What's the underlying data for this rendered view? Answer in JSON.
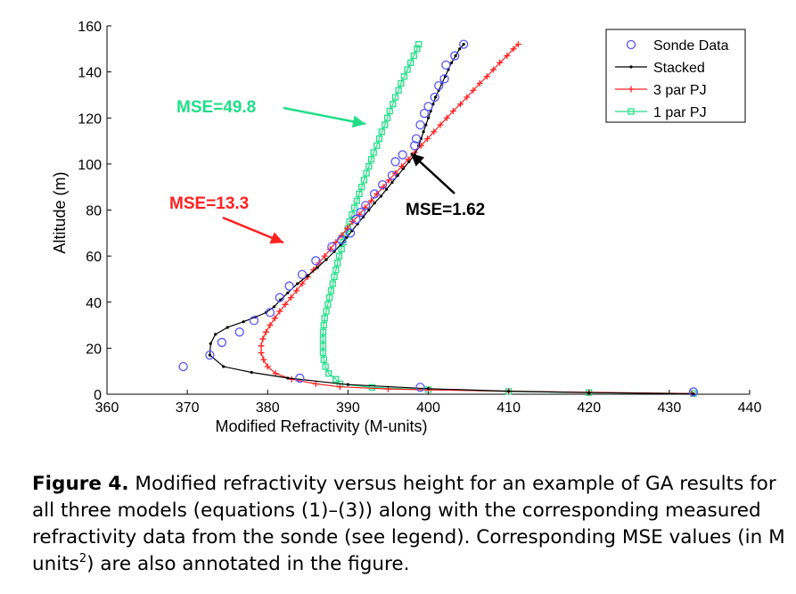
{
  "chart_data": {
    "type": "line",
    "xlabel": "Modified Refractivity (M-units)",
    "ylabel": "Altitude (m)",
    "xlim": [
      360,
      440
    ],
    "ylim": [
      0,
      160
    ],
    "xticks": [
      360,
      370,
      380,
      390,
      400,
      410,
      420,
      430,
      440
    ],
    "yticks": [
      0,
      20,
      40,
      60,
      80,
      100,
      120,
      140,
      160
    ],
    "legend_position": "top-right",
    "grid": false,
    "series": [
      {
        "name": "Sonde Data",
        "color": "#5555ff",
        "style": "markers-circle",
        "points": [
          [
            433.0,
            1
          ],
          [
            399.0,
            3
          ],
          [
            384.0,
            7
          ],
          [
            369.5,
            12
          ],
          [
            372.8,
            17
          ],
          [
            374.3,
            22.5
          ],
          [
            376.5,
            27
          ],
          [
            378.3,
            32
          ],
          [
            380.3,
            35.5
          ],
          [
            381.5,
            42
          ],
          [
            382.7,
            47
          ],
          [
            384.3,
            52
          ],
          [
            386.0,
            58
          ],
          [
            388.0,
            64
          ],
          [
            389.2,
            67
          ],
          [
            390.3,
            70
          ],
          [
            391.0,
            76
          ],
          [
            391.6,
            79
          ],
          [
            392.2,
            82
          ],
          [
            393.3,
            87
          ],
          [
            394.3,
            91
          ],
          [
            395.5,
            95
          ],
          [
            395.9,
            101
          ],
          [
            396.8,
            104
          ],
          [
            398.3,
            108
          ],
          [
            398.5,
            111
          ],
          [
            399.0,
            117
          ],
          [
            399.5,
            122
          ],
          [
            400.0,
            125
          ],
          [
            400.8,
            129
          ],
          [
            401.3,
            134
          ],
          [
            402.0,
            137
          ],
          [
            402.2,
            143
          ],
          [
            403.3,
            147
          ],
          [
            404.4,
            152
          ]
        ]
      },
      {
        "name": "Stacked",
        "color": "#000000",
        "style": "line-dot",
        "points": [
          [
            433.0,
            0.2
          ],
          [
            420,
            0.7
          ],
          [
            410,
            1.3
          ],
          [
            400,
            2.4
          ],
          [
            390,
            4.2
          ],
          [
            382.5,
            7
          ],
          [
            378,
            9.5
          ],
          [
            374.5,
            12
          ],
          [
            372.8,
            17
          ],
          [
            372.9,
            22
          ],
          [
            373.5,
            26
          ],
          [
            375,
            29
          ],
          [
            377,
            31.5
          ],
          [
            378.5,
            33.5
          ],
          [
            379.8,
            35.5
          ],
          [
            380.8,
            38
          ],
          [
            381.6,
            41
          ],
          [
            382.5,
            44
          ],
          [
            383.7,
            48
          ],
          [
            385,
            51.5
          ],
          [
            386.2,
            55
          ],
          [
            387.3,
            58.5
          ],
          [
            388.3,
            62
          ],
          [
            389.1,
            65
          ],
          [
            389.8,
            68
          ],
          [
            390.5,
            71
          ],
          [
            391.2,
            74
          ],
          [
            391.9,
            77
          ],
          [
            392.6,
            80
          ],
          [
            393.3,
            83
          ],
          [
            394.1,
            86
          ],
          [
            394.8,
            89
          ],
          [
            395.5,
            92
          ],
          [
            396.2,
            95
          ],
          [
            396.9,
            98
          ],
          [
            397.6,
            101
          ],
          [
            398.3,
            104
          ],
          [
            398.8,
            108
          ],
          [
            399.1,
            111
          ],
          [
            399.4,
            114
          ],
          [
            399.7,
            117
          ],
          [
            400.0,
            120
          ],
          [
            400.3,
            123
          ],
          [
            400.6,
            126
          ],
          [
            400.9,
            129
          ],
          [
            401.3,
            132
          ],
          [
            401.7,
            135
          ],
          [
            402.1,
            138
          ],
          [
            402.5,
            141
          ],
          [
            402.9,
            144
          ],
          [
            403.4,
            147
          ],
          [
            403.9,
            150
          ],
          [
            404.4,
            152
          ]
        ]
      },
      {
        "name": "3 par PJ",
        "color": "#ff2020",
        "style": "line-plus",
        "points": [
          [
            432.8,
            0.3
          ],
          [
            420,
            0.8
          ],
          [
            410,
            1.3
          ],
          [
            400,
            1.9
          ],
          [
            395,
            2.3
          ],
          [
            389,
            3.2
          ],
          [
            386,
            4.5
          ],
          [
            383,
            6.5
          ],
          [
            381,
            9
          ],
          [
            380,
            12
          ],
          [
            379.5,
            15
          ],
          [
            379.2,
            18
          ],
          [
            379.2,
            21
          ],
          [
            379.4,
            24
          ],
          [
            379.8,
            27
          ],
          [
            380.3,
            30
          ],
          [
            380.9,
            33
          ],
          [
            381.5,
            36
          ],
          [
            382.2,
            39
          ],
          [
            382.9,
            42
          ],
          [
            383.6,
            45
          ],
          [
            384.3,
            48
          ],
          [
            385,
            51
          ],
          [
            385.7,
            54
          ],
          [
            386.4,
            57
          ],
          [
            387.1,
            60
          ],
          [
            387.8,
            63
          ],
          [
            388.5,
            66
          ],
          [
            389.2,
            69
          ],
          [
            389.9,
            72
          ],
          [
            390.6,
            75
          ],
          [
            391.4,
            78
          ],
          [
            392.1,
            81
          ],
          [
            392.9,
            84
          ],
          [
            393.6,
            87
          ],
          [
            394.4,
            90
          ],
          [
            395.1,
            93
          ],
          [
            395.9,
            96
          ],
          [
            396.7,
            99
          ],
          [
            397.5,
            102
          ],
          [
            398.3,
            105
          ],
          [
            399.1,
            108
          ],
          [
            399.9,
            111
          ],
          [
            400.7,
            114
          ],
          [
            401.5,
            117
          ],
          [
            402.3,
            120
          ],
          [
            403.1,
            123
          ],
          [
            404,
            126
          ],
          [
            404.8,
            129
          ],
          [
            405.6,
            132
          ],
          [
            406.4,
            135
          ],
          [
            407.3,
            138
          ],
          [
            408.1,
            141
          ],
          [
            408.9,
            144
          ],
          [
            409.8,
            147
          ],
          [
            410.6,
            150
          ],
          [
            411.2,
            152
          ]
        ]
      },
      {
        "name": "1 par PJ",
        "color": "#22dd88",
        "style": "line-square",
        "points": [
          [
            433.0,
            0.3
          ],
          [
            420,
            0.7
          ],
          [
            410,
            1.2
          ],
          [
            400,
            2.0
          ],
          [
            393,
            3.0
          ],
          [
            389,
            4.5
          ],
          [
            388.5,
            6.5
          ],
          [
            387.6,
            9
          ],
          [
            387.2,
            12
          ],
          [
            387,
            15
          ],
          [
            386.9,
            18
          ],
          [
            386.9,
            21
          ],
          [
            386.9,
            24
          ],
          [
            386.9,
            27
          ],
          [
            387,
            30
          ],
          [
            387.1,
            33
          ],
          [
            387.3,
            36
          ],
          [
            387.5,
            39
          ],
          [
            387.7,
            42
          ],
          [
            387.9,
            45
          ],
          [
            388.1,
            48
          ],
          [
            388.3,
            51
          ],
          [
            388.5,
            54
          ],
          [
            388.7,
            57
          ],
          [
            388.9,
            60
          ],
          [
            389.2,
            63
          ],
          [
            389.4,
            66
          ],
          [
            389.7,
            69
          ],
          [
            390,
            72
          ],
          [
            390.2,
            75
          ],
          [
            390.5,
            78
          ],
          [
            390.8,
            81
          ],
          [
            391.1,
            84
          ],
          [
            391.4,
            87
          ],
          [
            391.7,
            90
          ],
          [
            392,
            93
          ],
          [
            392.3,
            96
          ],
          [
            392.6,
            99
          ],
          [
            392.9,
            102
          ],
          [
            393.2,
            105
          ],
          [
            393.6,
            108
          ],
          [
            393.9,
            111
          ],
          [
            394.2,
            114
          ],
          [
            394.6,
            117
          ],
          [
            394.9,
            120
          ],
          [
            395.2,
            123
          ],
          [
            395.6,
            126
          ],
          [
            395.9,
            129
          ],
          [
            396.3,
            132
          ],
          [
            396.6,
            135
          ],
          [
            397,
            138
          ],
          [
            397.4,
            141
          ],
          [
            397.8,
            144
          ],
          [
            398.2,
            147
          ],
          [
            398.6,
            150
          ],
          [
            398.8,
            152
          ]
        ]
      }
    ],
    "annotations": [
      {
        "text": "MSE=49.8",
        "color": "#22dd88"
      },
      {
        "text": "MSE=13.3",
        "color": "#ff2020"
      },
      {
        "text": "MSE=1.62",
        "color": "#000000"
      }
    ]
  },
  "caption": {
    "label": "Figure 4.",
    "text_part1": " Modified refractivity versus height for an example of GA results for all three models (equations (1)–(3)) along with the corresponding measured refractivity data from the sonde (see legend). Corresponding MSE values (in M units",
    "superscript": "2",
    "text_part2": ") are also annotated in the figure."
  }
}
